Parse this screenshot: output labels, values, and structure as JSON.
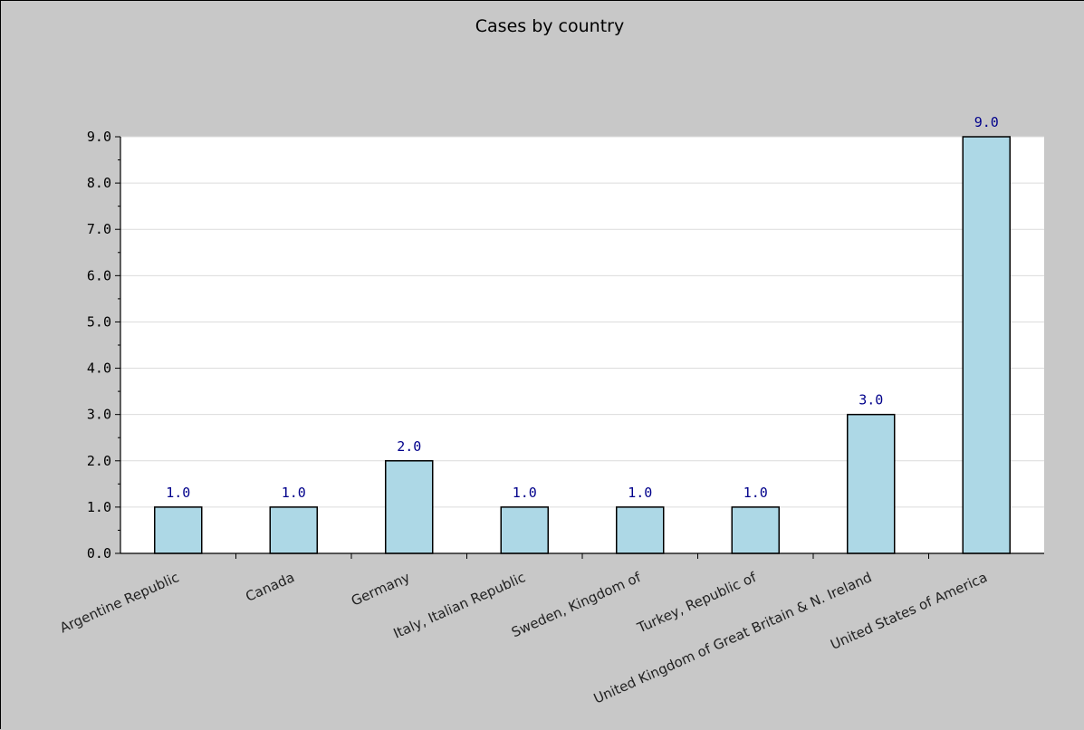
{
  "chart_data": {
    "type": "bar",
    "title": "Cases by country",
    "xlabel": "",
    "ylabel": "",
    "categories": [
      "Argentine Republic",
      "Canada",
      "Germany",
      "Italy, Italian Republic",
      "Sweden, Kingdom of",
      "Turkey, Republic of",
      "United Kingdom of Great Britain & N. Ireland",
      "United States of America"
    ],
    "values": [
      1.0,
      1.0,
      2.0,
      1.0,
      1.0,
      1.0,
      3.0,
      9.0
    ],
    "value_labels": [
      "1.0",
      "1.0",
      "2.0",
      "1.0",
      "1.0",
      "1.0",
      "3.0",
      "9.0"
    ],
    "yticks": [
      "0.0",
      "1.0",
      "2.0",
      "3.0",
      "4.0",
      "5.0",
      "6.0",
      "7.0",
      "8.0",
      "9.0"
    ],
    "ylim": [
      0,
      9
    ],
    "grid": true,
    "legend": "none",
    "colors": {
      "background": "#c8c8c8",
      "plot_area": "#ffffff",
      "bar_fill": "#add8e6",
      "bar_stroke": "#000000",
      "gridline": "#dcdcdc",
      "data_label": "#00008b"
    }
  }
}
